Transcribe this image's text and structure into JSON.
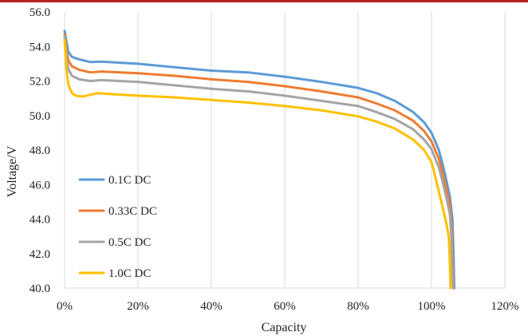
{
  "chart_data": {
    "type": "line",
    "xlabel": "Capacity",
    "ylabel": "Voltage/V",
    "xlim": [
      0,
      120
    ],
    "ylim": [
      40,
      56
    ],
    "x_ticks": [
      "0%",
      "20%",
      "40%",
      "60%",
      "80%",
      "100%",
      "120%"
    ],
    "y_ticks": [
      "40.0",
      "42.0",
      "44.0",
      "46.0",
      "48.0",
      "50.0",
      "52.0",
      "54.0",
      "56.0"
    ],
    "grid": "vertical",
    "legend_position": "lower-left",
    "series": [
      {
        "name": "0.1C DC",
        "color": "#5b9bd5",
        "points": [
          [
            0,
            54.9
          ],
          [
            0.5,
            54.3
          ],
          [
            1,
            53.7
          ],
          [
            2,
            53.4
          ],
          [
            4,
            53.25
          ],
          [
            7,
            53.1
          ],
          [
            10,
            53.12
          ],
          [
            20,
            53.0
          ],
          [
            30,
            52.8
          ],
          [
            40,
            52.6
          ],
          [
            50,
            52.5
          ],
          [
            60,
            52.25
          ],
          [
            70,
            51.95
          ],
          [
            80,
            51.6
          ],
          [
            85,
            51.3
          ],
          [
            90,
            50.85
          ],
          [
            95,
            50.2
          ],
          [
            98,
            49.6
          ],
          [
            100,
            49.0
          ],
          [
            102,
            48.0
          ],
          [
            103,
            47.2
          ],
          [
            104,
            46.3
          ],
          [
            105,
            45.3
          ],
          [
            105.7,
            44.0
          ],
          [
            106,
            42.0
          ],
          [
            106.2,
            40.0
          ]
        ]
      },
      {
        "name": "0.33C DC",
        "color": "#ed7d31",
        "points": [
          [
            0,
            54.7
          ],
          [
            0.5,
            53.8
          ],
          [
            1,
            53.2
          ],
          [
            2,
            52.85
          ],
          [
            4,
            52.65
          ],
          [
            7,
            52.5
          ],
          [
            10,
            52.55
          ],
          [
            20,
            52.45
          ],
          [
            30,
            52.3
          ],
          [
            40,
            52.1
          ],
          [
            50,
            51.95
          ],
          [
            60,
            51.7
          ],
          [
            70,
            51.4
          ],
          [
            80,
            51.05
          ],
          [
            85,
            50.7
          ],
          [
            90,
            50.3
          ],
          [
            95,
            49.7
          ],
          [
            98,
            49.1
          ],
          [
            100,
            48.5
          ],
          [
            102,
            47.5
          ],
          [
            103,
            46.7
          ],
          [
            104,
            45.8
          ],
          [
            105,
            44.8
          ],
          [
            105.5,
            43.5
          ],
          [
            105.8,
            41.5
          ],
          [
            106,
            40.0
          ]
        ]
      },
      {
        "name": "0.5C DC",
        "color": "#a5a5a5",
        "points": [
          [
            0,
            54.6
          ],
          [
            0.5,
            53.4
          ],
          [
            1,
            52.7
          ],
          [
            2,
            52.3
          ],
          [
            4,
            52.1
          ],
          [
            7,
            52.0
          ],
          [
            10,
            52.05
          ],
          [
            20,
            51.95
          ],
          [
            30,
            51.75
          ],
          [
            40,
            51.55
          ],
          [
            50,
            51.4
          ],
          [
            60,
            51.15
          ],
          [
            70,
            50.85
          ],
          [
            80,
            50.55
          ],
          [
            85,
            50.2
          ],
          [
            90,
            49.8
          ],
          [
            95,
            49.2
          ],
          [
            98,
            48.6
          ],
          [
            100,
            48.05
          ],
          [
            102,
            47.0
          ],
          [
            103,
            46.2
          ],
          [
            104,
            45.3
          ],
          [
            105,
            44.3
          ],
          [
            105.4,
            43.0
          ],
          [
            105.7,
            41.0
          ],
          [
            105.9,
            40.0
          ]
        ]
      },
      {
        "name": "1.0C DC",
        "color": "#ffc000",
        "points": [
          [
            0,
            54.4
          ],
          [
            0.5,
            52.7
          ],
          [
            1,
            51.8
          ],
          [
            2,
            51.3
          ],
          [
            3,
            51.15
          ],
          [
            5,
            51.1
          ],
          [
            7,
            51.2
          ],
          [
            9,
            51.3
          ],
          [
            12,
            51.25
          ],
          [
            20,
            51.15
          ],
          [
            30,
            51.05
          ],
          [
            40,
            50.9
          ],
          [
            50,
            50.75
          ],
          [
            60,
            50.55
          ],
          [
            70,
            50.3
          ],
          [
            80,
            49.95
          ],
          [
            85,
            49.65
          ],
          [
            90,
            49.25
          ],
          [
            95,
            48.6
          ],
          [
            98,
            48.0
          ],
          [
            100,
            47.3
          ],
          [
            101,
            46.5
          ],
          [
            102,
            45.6
          ],
          [
            103,
            44.7
          ],
          [
            104,
            43.8
          ],
          [
            104.7,
            43.0
          ],
          [
            105,
            41.5
          ],
          [
            105.2,
            40.0
          ]
        ]
      }
    ]
  }
}
